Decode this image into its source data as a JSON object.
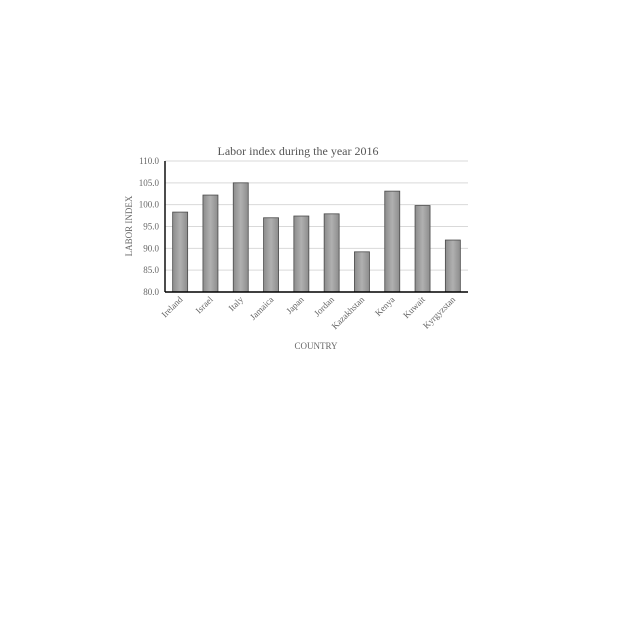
{
  "chart_data": {
    "type": "bar",
    "title": "Labor index during the year 2016",
    "xlabel": "COUNTRY",
    "ylabel": "LABOR INDEX",
    "categories": [
      "Ireland",
      "Israel",
      "Italy",
      "Jamaica",
      "Japan",
      "Jordan",
      "Kazakhstan",
      "Kenya",
      "Kuwait",
      "Kyrgyzstan"
    ],
    "values": [
      98.3,
      102.2,
      105.0,
      97.0,
      97.4,
      97.9,
      89.2,
      103.1,
      99.8,
      91.9
    ],
    "ylim": [
      80,
      110
    ],
    "yticks": [
      "80.0",
      "85.0",
      "90.0",
      "95.0",
      "100.0",
      "105.0",
      "110.0"
    ],
    "grid": true,
    "legend": "none",
    "bar_color": "#9a9a9a"
  }
}
